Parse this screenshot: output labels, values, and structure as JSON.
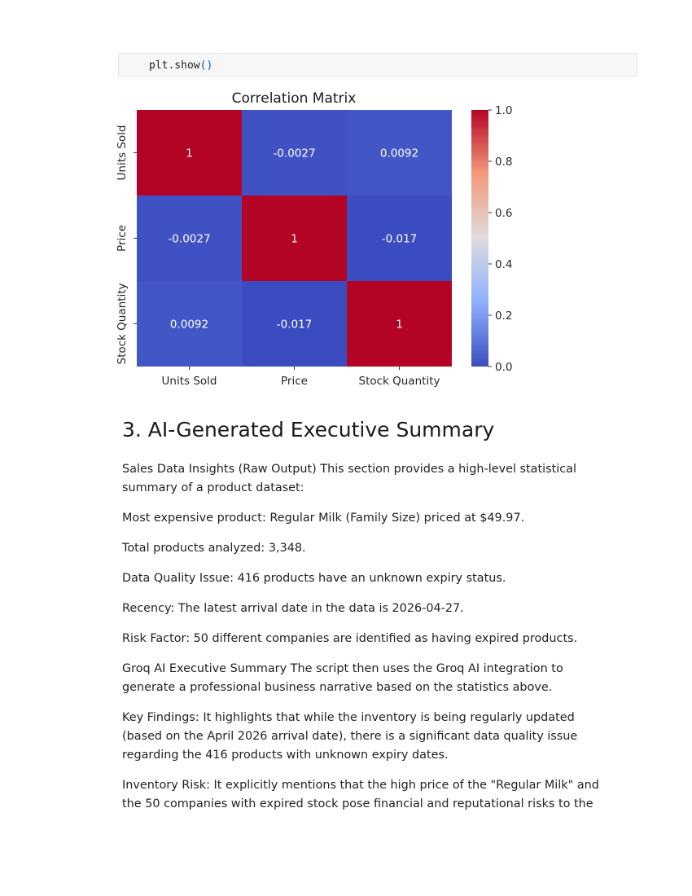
{
  "code": {
    "fn": "plt.show",
    "parens": "()"
  },
  "chart_data": {
    "type": "heatmap",
    "title": "Correlation Matrix",
    "xlabels": [
      "Units Sold",
      "Price",
      "Stock Quantity"
    ],
    "ylabels": [
      "Units Sold",
      "Price",
      "Stock Quantity"
    ],
    "values": [
      [
        1,
        -0.0027,
        0.0092
      ],
      [
        -0.0027,
        1,
        -0.017
      ],
      [
        0.0092,
        -0.017,
        1
      ]
    ],
    "annotations": [
      [
        "1",
        "-0.0027",
        "0.0092"
      ],
      [
        "-0.0027",
        "1",
        "-0.017"
      ],
      [
        "0.0092",
        "-0.017",
        "1"
      ]
    ],
    "colormap": "coolwarm",
    "vmin": -0.017,
    "vmax": 1,
    "colorbar_ticks": [
      "0.0",
      "0.2",
      "0.4",
      "0.6",
      "0.8",
      "1.0"
    ]
  },
  "section": {
    "heading": "3. AI-Generated Executive Summary",
    "paragraphs": [
      "Sales Data Insights (Raw Output) This section provides a high-level statistical summary of a product dataset:",
      "Most expensive product: Regular Milk (Family Size) priced at $49.97.",
      "Total products analyzed: 3,348.",
      "Data Quality Issue: 416 products have an unknown expiry status.",
      "Recency: The latest arrival date in the data is 2026-04-27.",
      "Risk Factor: 50 different companies are identified as having expired products.",
      "Groq AI Executive Summary The script then uses the Groq AI integration to generate a professional business narrative based on the statistics above.",
      "Key Findings: It highlights that while the inventory is being regularly updated (based on the April 2026 arrival date), there is a significant data quality issue regarding the 416 products with unknown expiry dates.",
      "Inventory Risk: It explicitly mentions that the high price of the \"Regular Milk\" and the 50 companies with expired stock pose financial and reputational risks to the"
    ]
  }
}
